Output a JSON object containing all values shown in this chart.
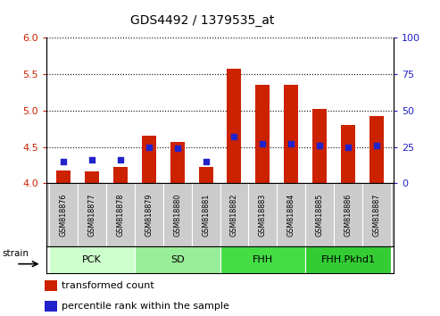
{
  "title": "GDS4492 / 1379535_at",
  "samples": [
    "GSM818876",
    "GSM818877",
    "GSM818878",
    "GSM818879",
    "GSM818880",
    "GSM818881",
    "GSM818882",
    "GSM818883",
    "GSM818884",
    "GSM818885",
    "GSM818886",
    "GSM818887"
  ],
  "red_values": [
    4.18,
    4.16,
    4.22,
    4.65,
    4.57,
    4.22,
    5.58,
    5.35,
    5.35,
    5.02,
    4.8,
    4.93
  ],
  "blue_values_pct": [
    15,
    16,
    16,
    25,
    24,
    15,
    32,
    27,
    27,
    26,
    25,
    26
  ],
  "ylim_left": [
    4.0,
    6.0
  ],
  "ylim_right": [
    0,
    100
  ],
  "yticks_left": [
    4.0,
    4.5,
    5.0,
    5.5,
    6.0
  ],
  "yticks_right": [
    0,
    25,
    50,
    75,
    100
  ],
  "groups": [
    {
      "label": "PCK",
      "start": 0,
      "end": 3,
      "color": "#ccffcc"
    },
    {
      "label": "SD",
      "start": 3,
      "end": 6,
      "color": "#99ee99"
    },
    {
      "label": "FHH",
      "start": 6,
      "end": 9,
      "color": "#44dd44"
    },
    {
      "label": "FHH.Pkhd1",
      "start": 9,
      "end": 12,
      "color": "#33cc33"
    }
  ],
  "bar_color": "#cc2200",
  "dot_color": "#2222cc",
  "bar_width": 0.5,
  "tick_bg": "#cccccc",
  "ylabel_left_color": "#cc2200",
  "ylabel_right_color": "#2222cc",
  "strain_label": "strain",
  "legend_items": [
    "transformed count",
    "percentile rank within the sample"
  ]
}
